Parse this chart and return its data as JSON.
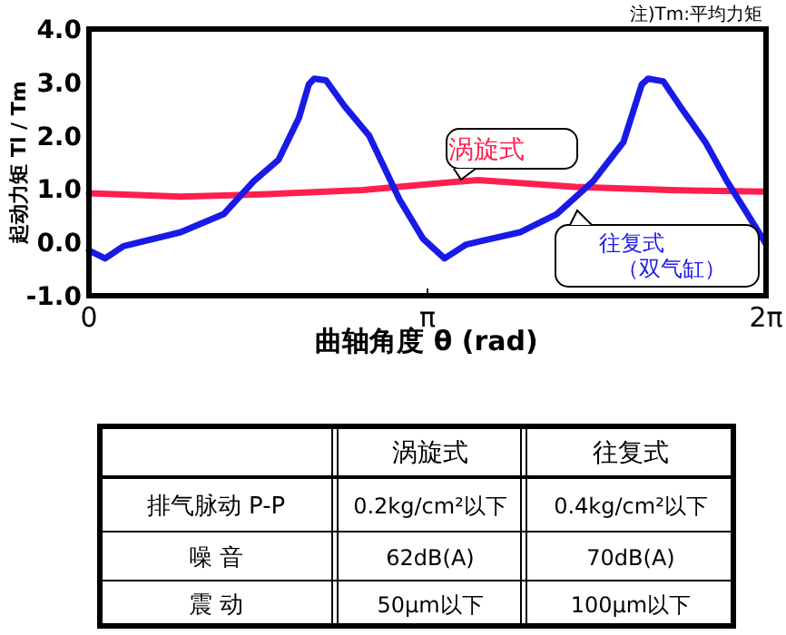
{
  "chart_data": [
    {
      "type": "line",
      "xlabel": "曲轴角度 θ (rad)",
      "ylabel": "起动力矩 Tl / Tm",
      "annotations": [
        "注)Tm:平均力矩"
      ],
      "xlim": [
        0,
        6.2832
      ],
      "ylim": [
        -1,
        4
      ],
      "xticks": [
        {
          "value": 0,
          "label": "0"
        },
        {
          "value": 3.1416,
          "label": "π"
        },
        {
          "value": 6.2832,
          "label": "2π"
        }
      ],
      "yticks": [
        {
          "value": -1,
          "label": "-1.0"
        },
        {
          "value": 0,
          "label": "0.0"
        },
        {
          "value": 1,
          "label": "1.0"
        },
        {
          "value": 2,
          "label": "2.0"
        },
        {
          "value": 3,
          "label": "3.0"
        },
        {
          "value": 4,
          "label": "4.0"
        }
      ],
      "grid": false,
      "legend": false,
      "marker": "none",
      "line_style": "solid",
      "series": [
        {
          "name": "涡旋式",
          "color": "#ff1f4f",
          "x": [
            0,
            0.85,
            1.6,
            2.54,
            3.2,
            3.61,
            4.51,
            5.4,
            6.28
          ],
          "values": [
            0.92,
            0.86,
            0.9,
            0.98,
            1.1,
            1.17,
            1.04,
            0.98,
            0.95
          ]
        },
        {
          "name": "往复式（双气缸）",
          "color": "#1a1ae6",
          "x": [
            0,
            0.15,
            0.32,
            0.85,
            1.25,
            1.53,
            1.76,
            1.95,
            2.04,
            2.09,
            2.2,
            2.37,
            2.6,
            2.88,
            3.1,
            3.3,
            3.5,
            3.67,
            4.0,
            4.34,
            4.68,
            4.96,
            5.13,
            5.19,
            5.33,
            5.5,
            5.72,
            5.92,
            6.09,
            6.28
          ],
          "values": [
            -0.15,
            -0.3,
            -0.07,
            0.19,
            0.53,
            1.15,
            1.55,
            2.34,
            2.96,
            3.07,
            3.04,
            2.56,
            2.0,
            0.81,
            0.07,
            -0.3,
            -0.04,
            0.04,
            0.19,
            0.53,
            1.15,
            1.88,
            2.96,
            3.07,
            3.02,
            2.51,
            1.88,
            1.15,
            0.6,
            -0.02
          ]
        }
      ]
    },
    {
      "type": "other",
      "categories": [
        "涡旋式",
        "往复式"
      ],
      "y_categories": [
        "排气脉动 P-P",
        "噪 音",
        "震 动"
      ],
      "cell_labels": [
        [
          "0.2kg/cm²以下",
          "0.4kg/cm²以下"
        ],
        [
          "62dB(A)",
          "70dB(A)"
        ],
        [
          "50μm以下",
          "100μm以下"
        ]
      ]
    }
  ]
}
